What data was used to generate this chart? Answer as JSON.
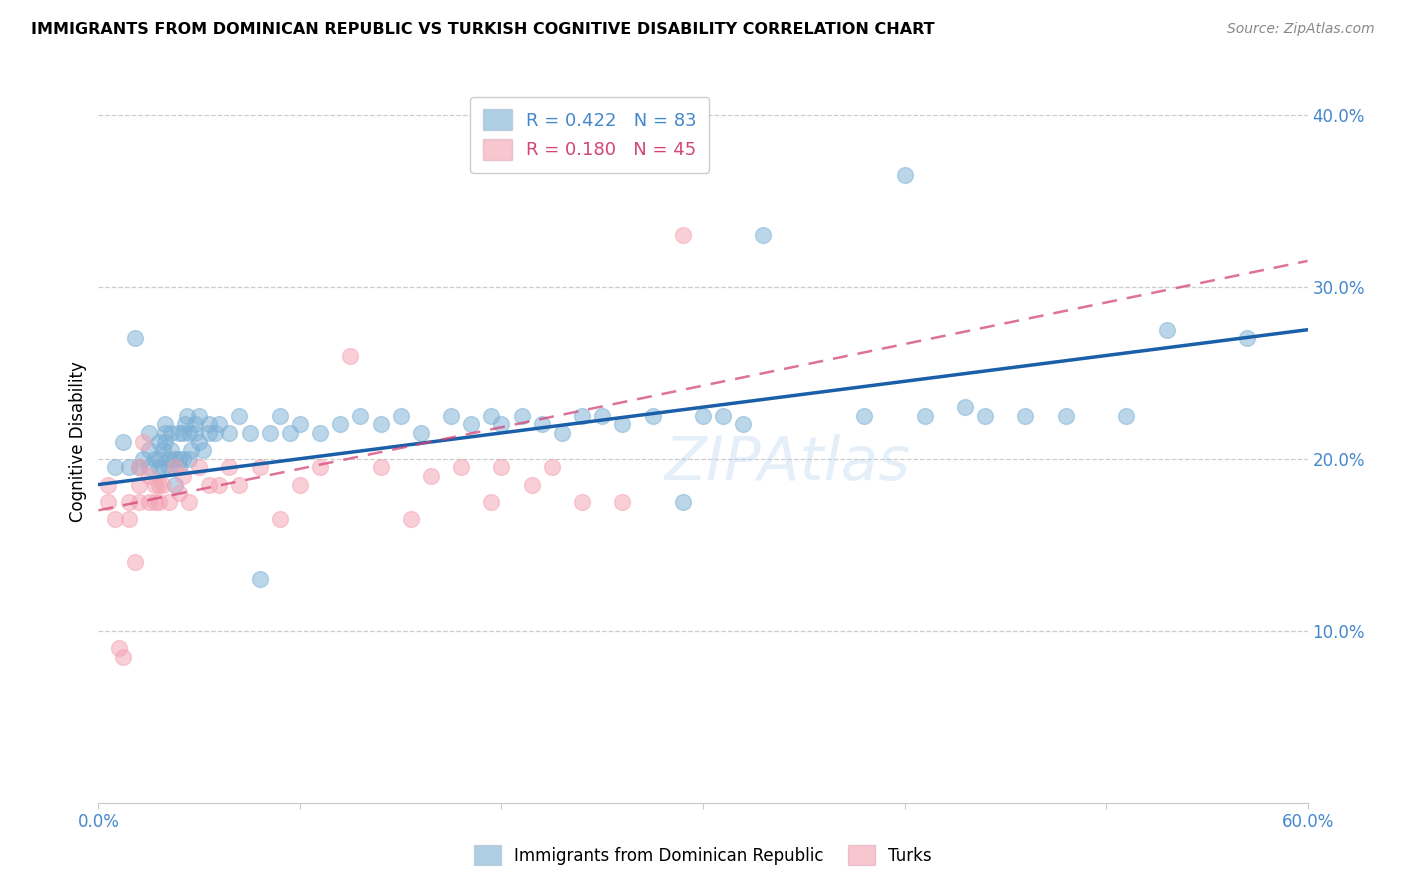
{
  "title": "IMMIGRANTS FROM DOMINICAN REPUBLIC VS TURKISH COGNITIVE DISABILITY CORRELATION CHART",
  "source": "Source: ZipAtlas.com",
  "ylabel": "Cognitive Disability",
  "xlim": [
    0.0,
    0.6
  ],
  "ylim": [
    0.0,
    0.42
  ],
  "yticks": [
    0.1,
    0.2,
    0.3,
    0.4
  ],
  "xticks": [
    0.0,
    0.1,
    0.2,
    0.3,
    0.4,
    0.5,
    0.6
  ],
  "xtick_labels": [
    "0.0%",
    "",
    "",
    "",
    "",
    "",
    "60.0%"
  ],
  "ytick_labels": [
    "10.0%",
    "20.0%",
    "30.0%",
    "40.0%"
  ],
  "blue_R": 0.422,
  "blue_N": 83,
  "pink_R": 0.18,
  "pink_N": 45,
  "blue_color": "#7BAFD4",
  "pink_color": "#F4A0B0",
  "blue_line_color": "#1A5FA8",
  "pink_line_color": "#D44477",
  "tick_color": "#4488CC",
  "legend_label_blue": "Immigrants from Dominican Republic",
  "legend_label_pink": "Turks",
  "blue_scatter_x": [
    0.008,
    0.012,
    0.015,
    0.018,
    0.02,
    0.022,
    0.025,
    0.025,
    0.025,
    0.028,
    0.03,
    0.03,
    0.03,
    0.032,
    0.032,
    0.033,
    0.033,
    0.033,
    0.035,
    0.035,
    0.036,
    0.036,
    0.038,
    0.038,
    0.04,
    0.04,
    0.04,
    0.042,
    0.042,
    0.043,
    0.044,
    0.045,
    0.045,
    0.046,
    0.048,
    0.048,
    0.05,
    0.05,
    0.052,
    0.055,
    0.055,
    0.058,
    0.06,
    0.065,
    0.07,
    0.075,
    0.08,
    0.085,
    0.09,
    0.095,
    0.1,
    0.11,
    0.12,
    0.13,
    0.14,
    0.15,
    0.16,
    0.175,
    0.185,
    0.195,
    0.2,
    0.21,
    0.22,
    0.23,
    0.24,
    0.25,
    0.26,
    0.275,
    0.29,
    0.3,
    0.31,
    0.32,
    0.33,
    0.38,
    0.4,
    0.41,
    0.43,
    0.44,
    0.46,
    0.48,
    0.51,
    0.53,
    0.57
  ],
  "blue_scatter_y": [
    0.195,
    0.21,
    0.195,
    0.27,
    0.195,
    0.2,
    0.195,
    0.205,
    0.215,
    0.2,
    0.195,
    0.2,
    0.21,
    0.195,
    0.205,
    0.21,
    0.215,
    0.22,
    0.195,
    0.2,
    0.205,
    0.215,
    0.185,
    0.2,
    0.195,
    0.2,
    0.215,
    0.2,
    0.215,
    0.22,
    0.225,
    0.2,
    0.215,
    0.205,
    0.215,
    0.22,
    0.21,
    0.225,
    0.205,
    0.215,
    0.22,
    0.215,
    0.22,
    0.215,
    0.225,
    0.215,
    0.13,
    0.215,
    0.225,
    0.215,
    0.22,
    0.215,
    0.22,
    0.225,
    0.22,
    0.225,
    0.215,
    0.225,
    0.22,
    0.225,
    0.22,
    0.225,
    0.22,
    0.215,
    0.225,
    0.225,
    0.22,
    0.225,
    0.175,
    0.225,
    0.225,
    0.22,
    0.33,
    0.225,
    0.365,
    0.225,
    0.23,
    0.225,
    0.225,
    0.225,
    0.225,
    0.275,
    0.27
  ],
  "pink_scatter_x": [
    0.005,
    0.005,
    0.008,
    0.01,
    0.012,
    0.015,
    0.015,
    0.018,
    0.02,
    0.02,
    0.02,
    0.022,
    0.025,
    0.025,
    0.028,
    0.028,
    0.03,
    0.03,
    0.032,
    0.035,
    0.038,
    0.04,
    0.042,
    0.045,
    0.05,
    0.055,
    0.06,
    0.065,
    0.07,
    0.08,
    0.09,
    0.1,
    0.11,
    0.125,
    0.14,
    0.155,
    0.165,
    0.18,
    0.195,
    0.2,
    0.215,
    0.225,
    0.24,
    0.26,
    0.29
  ],
  "pink_scatter_y": [
    0.185,
    0.175,
    0.165,
    0.09,
    0.085,
    0.175,
    0.165,
    0.14,
    0.195,
    0.185,
    0.175,
    0.21,
    0.19,
    0.175,
    0.185,
    0.175,
    0.185,
    0.175,
    0.185,
    0.175,
    0.195,
    0.18,
    0.19,
    0.175,
    0.195,
    0.185,
    0.185,
    0.195,
    0.185,
    0.195,
    0.165,
    0.185,
    0.195,
    0.26,
    0.195,
    0.165,
    0.19,
    0.195,
    0.175,
    0.195,
    0.185,
    0.195,
    0.175,
    0.175,
    0.33
  ],
  "blue_line_x": [
    0.0,
    0.6
  ],
  "blue_line_y": [
    0.185,
    0.275
  ],
  "pink_line_x": [
    0.0,
    0.6
  ],
  "pink_line_y": [
    0.17,
    0.315
  ]
}
